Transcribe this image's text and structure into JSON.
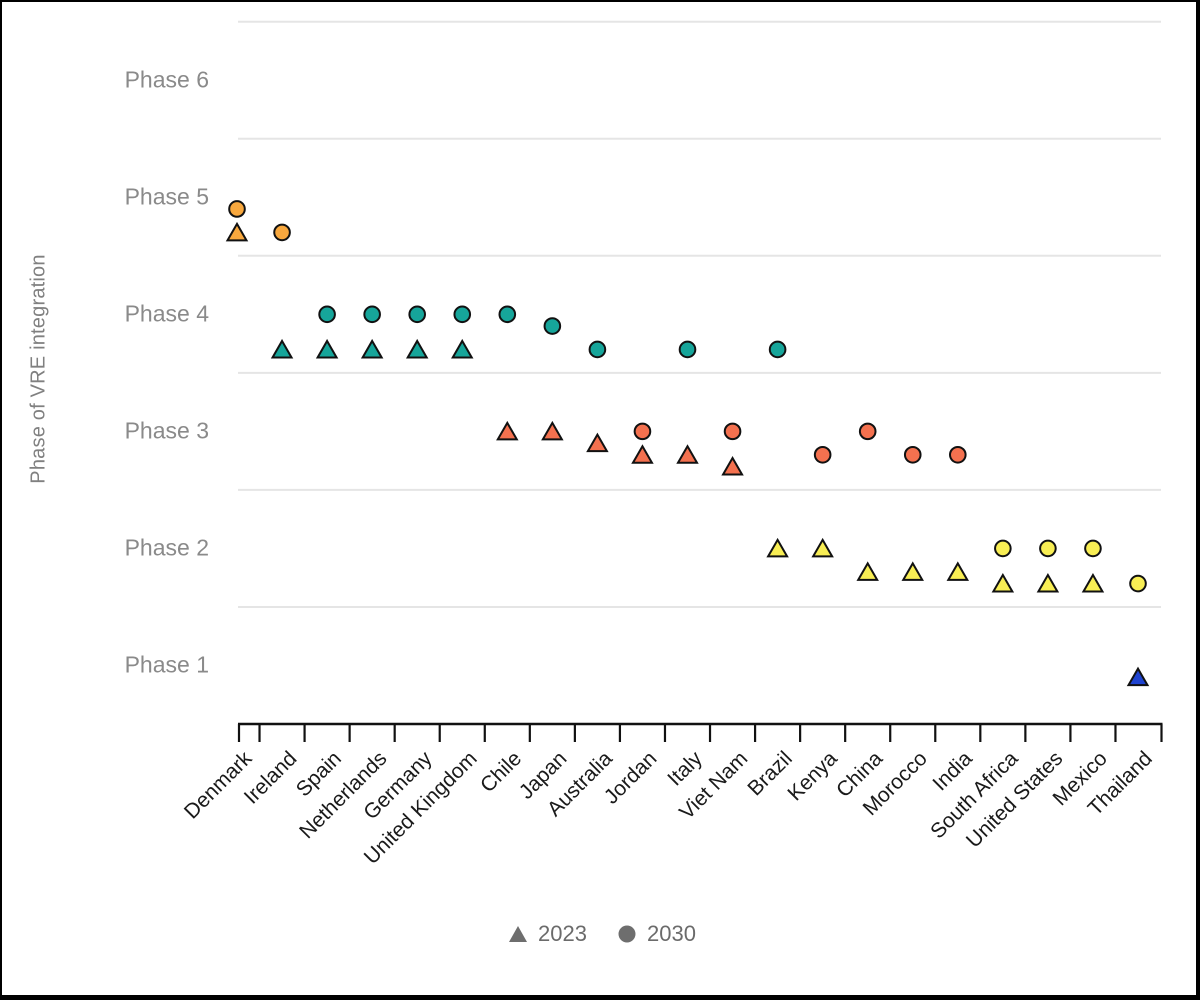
{
  "figure": {
    "ylabel": "Phase of VRE integration",
    "legend": [
      {
        "label": "2023",
        "marker": "triangle"
      },
      {
        "label": "2030",
        "marker": "circle"
      }
    ],
    "legend_marker_color": "#6e6e6e"
  },
  "chart_data": {
    "type": "scatter",
    "title": "",
    "xlabel": "",
    "ylabel": "Phase of VRE integration",
    "ylim": [
      0.5,
      6.5
    ],
    "y_tick_labels": [
      "Phase 1",
      "Phase 2",
      "Phase 3",
      "Phase 4",
      "Phase 5",
      "Phase 6"
    ],
    "grid": "horizontal",
    "gridline_levels": [
      1.5,
      2.5,
      3.5,
      4.5,
      5.5,
      6.5
    ],
    "legend_position": "bottom",
    "categories": [
      "Denmark",
      "Ireland",
      "Spain",
      "Netherlands",
      "Germany",
      "United Kingdom",
      "Chile",
      "Japan",
      "Australia",
      "Jordan",
      "Italy",
      "Viet Nam",
      "Brazil",
      "Kenya",
      "China",
      "Morocco",
      "India",
      "South Africa",
      "United States",
      "Mexico",
      "Thailand"
    ],
    "series": [
      {
        "name": "2023",
        "marker": "triangle",
        "phases": [
          5,
          4,
          4,
          4,
          4,
          4,
          3,
          3,
          3,
          3,
          3,
          3,
          2,
          2,
          2,
          2,
          2,
          2,
          2,
          2,
          1
        ],
        "plotted_y": [
          4.7,
          3.7,
          3.7,
          3.7,
          3.7,
          3.7,
          3.0,
          3.0,
          2.9,
          2.8,
          2.8,
          2.7,
          2.0,
          2.0,
          1.8,
          1.8,
          1.8,
          1.7,
          1.7,
          1.7,
          0.9
        ]
      },
      {
        "name": "2030",
        "marker": "circle",
        "phases": [
          5,
          5,
          4,
          4,
          4,
          4,
          4,
          4,
          4,
          3,
          4,
          3,
          4,
          3,
          3,
          3,
          3,
          2,
          2,
          2,
          2
        ],
        "plotted_y": [
          4.9,
          4.7,
          4.0,
          4.0,
          4.0,
          4.0,
          4.0,
          3.9,
          3.7,
          3.0,
          3.7,
          3.0,
          3.7,
          2.8,
          3.0,
          2.8,
          2.8,
          2.0,
          2.0,
          2.0,
          1.7
        ]
      }
    ],
    "phase_colors": {
      "1": "#1e43d0",
      "2": "#f8ee54",
      "3": "#f4714f",
      "4": "#16a59a",
      "5": "#f8a83e"
    },
    "marker_outline": "#111111",
    "gridline_color": "#e5e5e5",
    "axis_color": "#111111"
  }
}
